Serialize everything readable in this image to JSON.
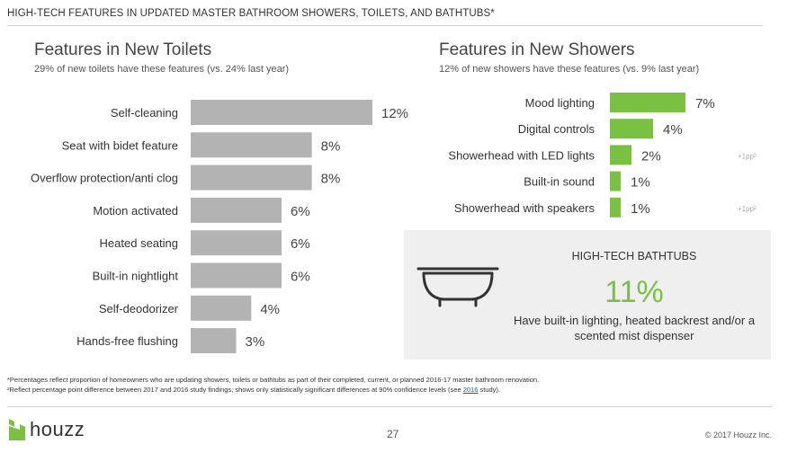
{
  "header": "HIGH-TECH FEATURES IN UPDATED MASTER BATHROOM SHOWERS, TOILETS, AND BATHTUBS*",
  "toilets": {
    "title": "Features in New Toilets",
    "subtitle": "29% of new toilets have these features (vs. 24% last year)"
  },
  "showers": {
    "title": "Features in New Showers",
    "subtitle": "12% of new showers have these features (vs. 9% last year)"
  },
  "chart_data": [
    {
      "type": "bar",
      "orientation": "horizontal",
      "title": "Features in New Toilets",
      "categories": [
        "Self-cleaning",
        "Seat with bidet feature",
        "Overflow protection/anti clog",
        "Motion activated",
        "Heated seating",
        "Built-in nightlight",
        "Self-deodorizer",
        "Hands-free flushing"
      ],
      "values": [
        12,
        8,
        8,
        6,
        6,
        6,
        4,
        3
      ],
      "labels": [
        "12%",
        "8%",
        "8%",
        "6%",
        "6%",
        "6%",
        "4%",
        "3%"
      ],
      "color": "#b3b3b3",
      "xlim": [
        0,
        12
      ]
    },
    {
      "type": "bar",
      "orientation": "horizontal",
      "title": "Features in New Showers",
      "categories": [
        "Mood lighting",
        "Digital controls",
        "Showerhead with LED lights",
        "Built-in sound",
        "Showerhead with speakers"
      ],
      "values": [
        7,
        4,
        2,
        1,
        1
      ],
      "labels": [
        "7%",
        "4%",
        "2%",
        "1%",
        "1%"
      ],
      "annotations": [
        "",
        "",
        "+1pp²",
        "",
        "+1pp²"
      ],
      "color": "#7ac143",
      "xlim": [
        0,
        7
      ]
    }
  ],
  "bathtubs": {
    "title": "HIGH-TECH BATHTUBS",
    "percent": "11%",
    "description": "Have built-in lighting, heated backrest and/or a scented mist dispenser",
    "icon": "bathtub-icon"
  },
  "footnotes": {
    "line1": "*Percentages reflect proportion of homeowners who are updating showers, toilets or bathtubs as part of their completed, current, or planned 2016-17 master bathroom renovation.",
    "line2_before": "²Reflect percentage point difference between 2017 and 2016 study findings; shows only statistically significant differences at 90% confidence levels (see ",
    "line2_link": "2016",
    "line2_after": " study)."
  },
  "footer": {
    "logo_text": "houzz",
    "logo_color": "#7ac143",
    "page_number": "27",
    "copyright": "© 2017 Houzz Inc."
  }
}
